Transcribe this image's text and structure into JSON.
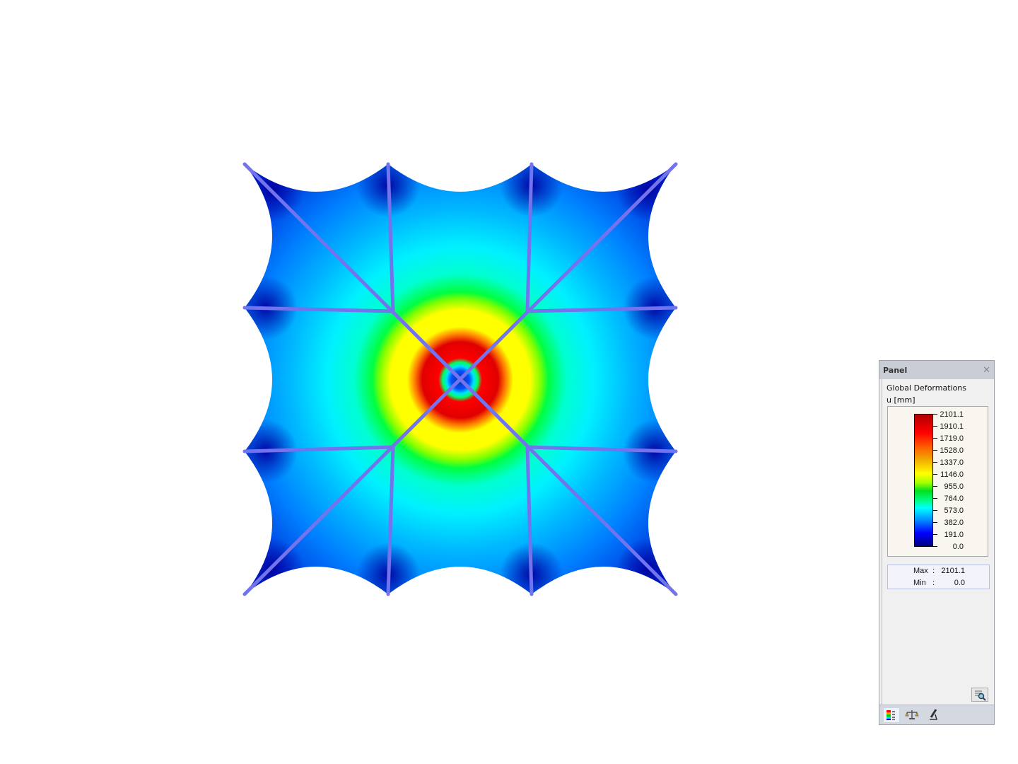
{
  "panel": {
    "title": "Panel",
    "close_icon": "close-icon",
    "heading": "Global Deformations",
    "unit": "u [mm]",
    "legend": {
      "values": [
        "2101.1",
        "1910.1",
        "1719.0",
        "1528.0",
        "1337.0",
        "1146.0",
        "955.0",
        "764.0",
        "573.0",
        "382.0",
        "191.0",
        "0.0"
      ],
      "colors": [
        "#b00000",
        "#ff0000",
        "#ff6000",
        "#f0a000",
        "#ffff00",
        "#00e020",
        "#00ffff",
        "#0090ff",
        "#0000ff",
        "#000080"
      ]
    },
    "max_label": "Max",
    "max_value": "2101.1",
    "min_label": "Min",
    "min_value": "0.0",
    "separator": ":",
    "tabs": [
      "color-scale-icon",
      "balance-scale-icon",
      "microscope-icon"
    ]
  },
  "model": {
    "cable_color": "#7373ee",
    "membrane_colors": [
      "#0000a0",
      "#0050ff",
      "#00ffff",
      "#00ff40",
      "#ffff00",
      "#ff0000"
    ]
  }
}
